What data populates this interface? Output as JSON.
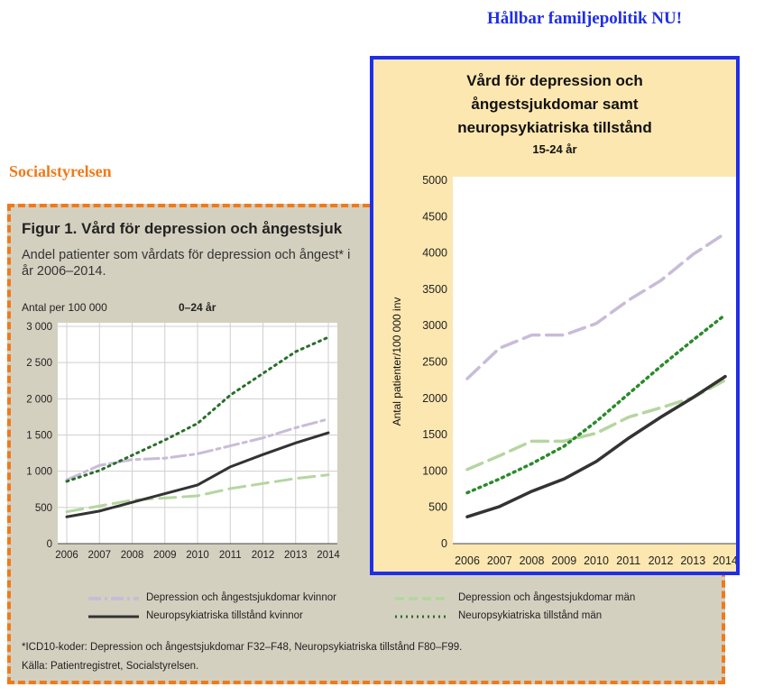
{
  "header": {
    "brand": "Hållbar familjepolitik NU!",
    "left_source": "Socialstyrelsen"
  },
  "left_figure": {
    "title": "Figur 1. Vård för depression och ångestsjuk",
    "subtitle_line1": "Andel patienter som vårdats för depression och ångest* i",
    "subtitle_line2": "år 2006–2014.",
    "y_unit": "Antal per 100 000",
    "age_group": "0–24 år",
    "legend": {
      "dep_women": "Depression och ångestsjukdomar kvinnor",
      "dep_men": "Depression och ångestsjukdomar män",
      "neuro_women": "Neuropsykiatriska tillstånd kvinnor",
      "neuro_men": "Neuropsykiatriska tillstånd män"
    },
    "footnote": "*ICD10-koder: Depression och ångestsjukdomar F32–F48, Neuropsykiatriska tillstånd F80–F99.",
    "source": "Källa: Patientregistret, Socialstyrelsen."
  },
  "right_figure": {
    "title_line1": "Vård för depression och",
    "title_line2": "ångestsjukdomar samt",
    "title_line3": "neuropsykiatriska tillstånd",
    "age_group": "15-24 år",
    "ylabel": "Antal patienter/100 000 inv"
  },
  "colors": {
    "dep_women": "#c8bcd8",
    "dep_men": "#b5d6a0",
    "neuro_women": "#333333",
    "neuro_men": "#2a6e2a",
    "brand": "#1f2ee8",
    "source": "#f07a1a"
  },
  "chart_data": [
    {
      "type": "line",
      "title": "Figur 1. Vård för depression och ångestsjuk",
      "ylabel": "Antal per 100 000",
      "x": [
        2006,
        2007,
        2008,
        2009,
        2010,
        2011,
        2012,
        2013,
        2014
      ],
      "x_labels": [
        "2006",
        "2007",
        "2008",
        "2009",
        "2010",
        "2011",
        "2012",
        "2013",
        "2014"
      ],
      "ylim": [
        0,
        3000
      ],
      "yticks": [
        0,
        500,
        1000,
        1500,
        2000,
        2500,
        3000
      ],
      "ytick_labels": [
        "0",
        "500",
        "1 000",
        "1 500",
        "2 000",
        "2 500",
        "3 000"
      ],
      "grid": true,
      "legend_position": "bottom",
      "series": [
        {
          "name": "Depression och ångestsjukdomar kvinnor",
          "style": "dashdot",
          "color": "#c8bcd8",
          "values": [
            880,
            1080,
            1160,
            1180,
            1240,
            1350,
            1460,
            1600,
            1720
          ]
        },
        {
          "name": "Depression och ångestsjukdomar män",
          "style": "dashed",
          "color": "#b5d6a0",
          "values": [
            440,
            520,
            600,
            630,
            660,
            760,
            830,
            900,
            950
          ]
        },
        {
          "name": "Neuropsykiatriska tillstånd kvinnor",
          "style": "solid",
          "color": "#333333",
          "values": [
            370,
            450,
            570,
            690,
            810,
            1060,
            1230,
            1390,
            1530
          ]
        },
        {
          "name": "Neuropsykiatriska tillstånd män",
          "style": "dotted",
          "color": "#2a6e2a",
          "values": [
            860,
            1010,
            1220,
            1430,
            1660,
            2050,
            2350,
            2650,
            2850
          ]
        }
      ]
    },
    {
      "type": "line",
      "title": "Vård för depression och ångestsjukdomar samt neuropsykiatriska tillstånd",
      "subtitle": "15-24 år",
      "ylabel": "Antal patienter/100 000 inv",
      "x": [
        2006,
        2007,
        2008,
        2009,
        2010,
        2011,
        2012,
        2013,
        2014
      ],
      "x_labels": [
        "2006",
        "2007",
        "2008",
        "2009",
        "2010",
        "2011",
        "2012",
        "2013",
        "2014"
      ],
      "ylim": [
        0,
        5000
      ],
      "yticks": [
        0,
        500,
        1000,
        1500,
        2000,
        2500,
        3000,
        3500,
        4000,
        4500,
        5000
      ],
      "ytick_labels": [
        "0",
        "500",
        "1000",
        "1500",
        "2000",
        "2500",
        "3000",
        "3500",
        "4000",
        "4500",
        "5000"
      ],
      "grid": false,
      "series": [
        {
          "style": "dashed",
          "color": "#c8bcd8",
          "values": [
            2270,
            2690,
            2870,
            2870,
            3030,
            3350,
            3620,
            3980,
            4270
          ]
        },
        {
          "style": "dashed",
          "color": "#b5d6a0",
          "values": [
            1020,
            1210,
            1410,
            1410,
            1520,
            1740,
            1870,
            2010,
            2250
          ]
        },
        {
          "style": "solid",
          "color": "#333333",
          "values": [
            370,
            510,
            720,
            890,
            1130,
            1450,
            1740,
            2010,
            2300
          ]
        },
        {
          "style": "dotted",
          "color": "#2a8a2a",
          "values": [
            700,
            890,
            1100,
            1340,
            1680,
            2060,
            2440,
            2800,
            3150
          ]
        }
      ]
    }
  ]
}
